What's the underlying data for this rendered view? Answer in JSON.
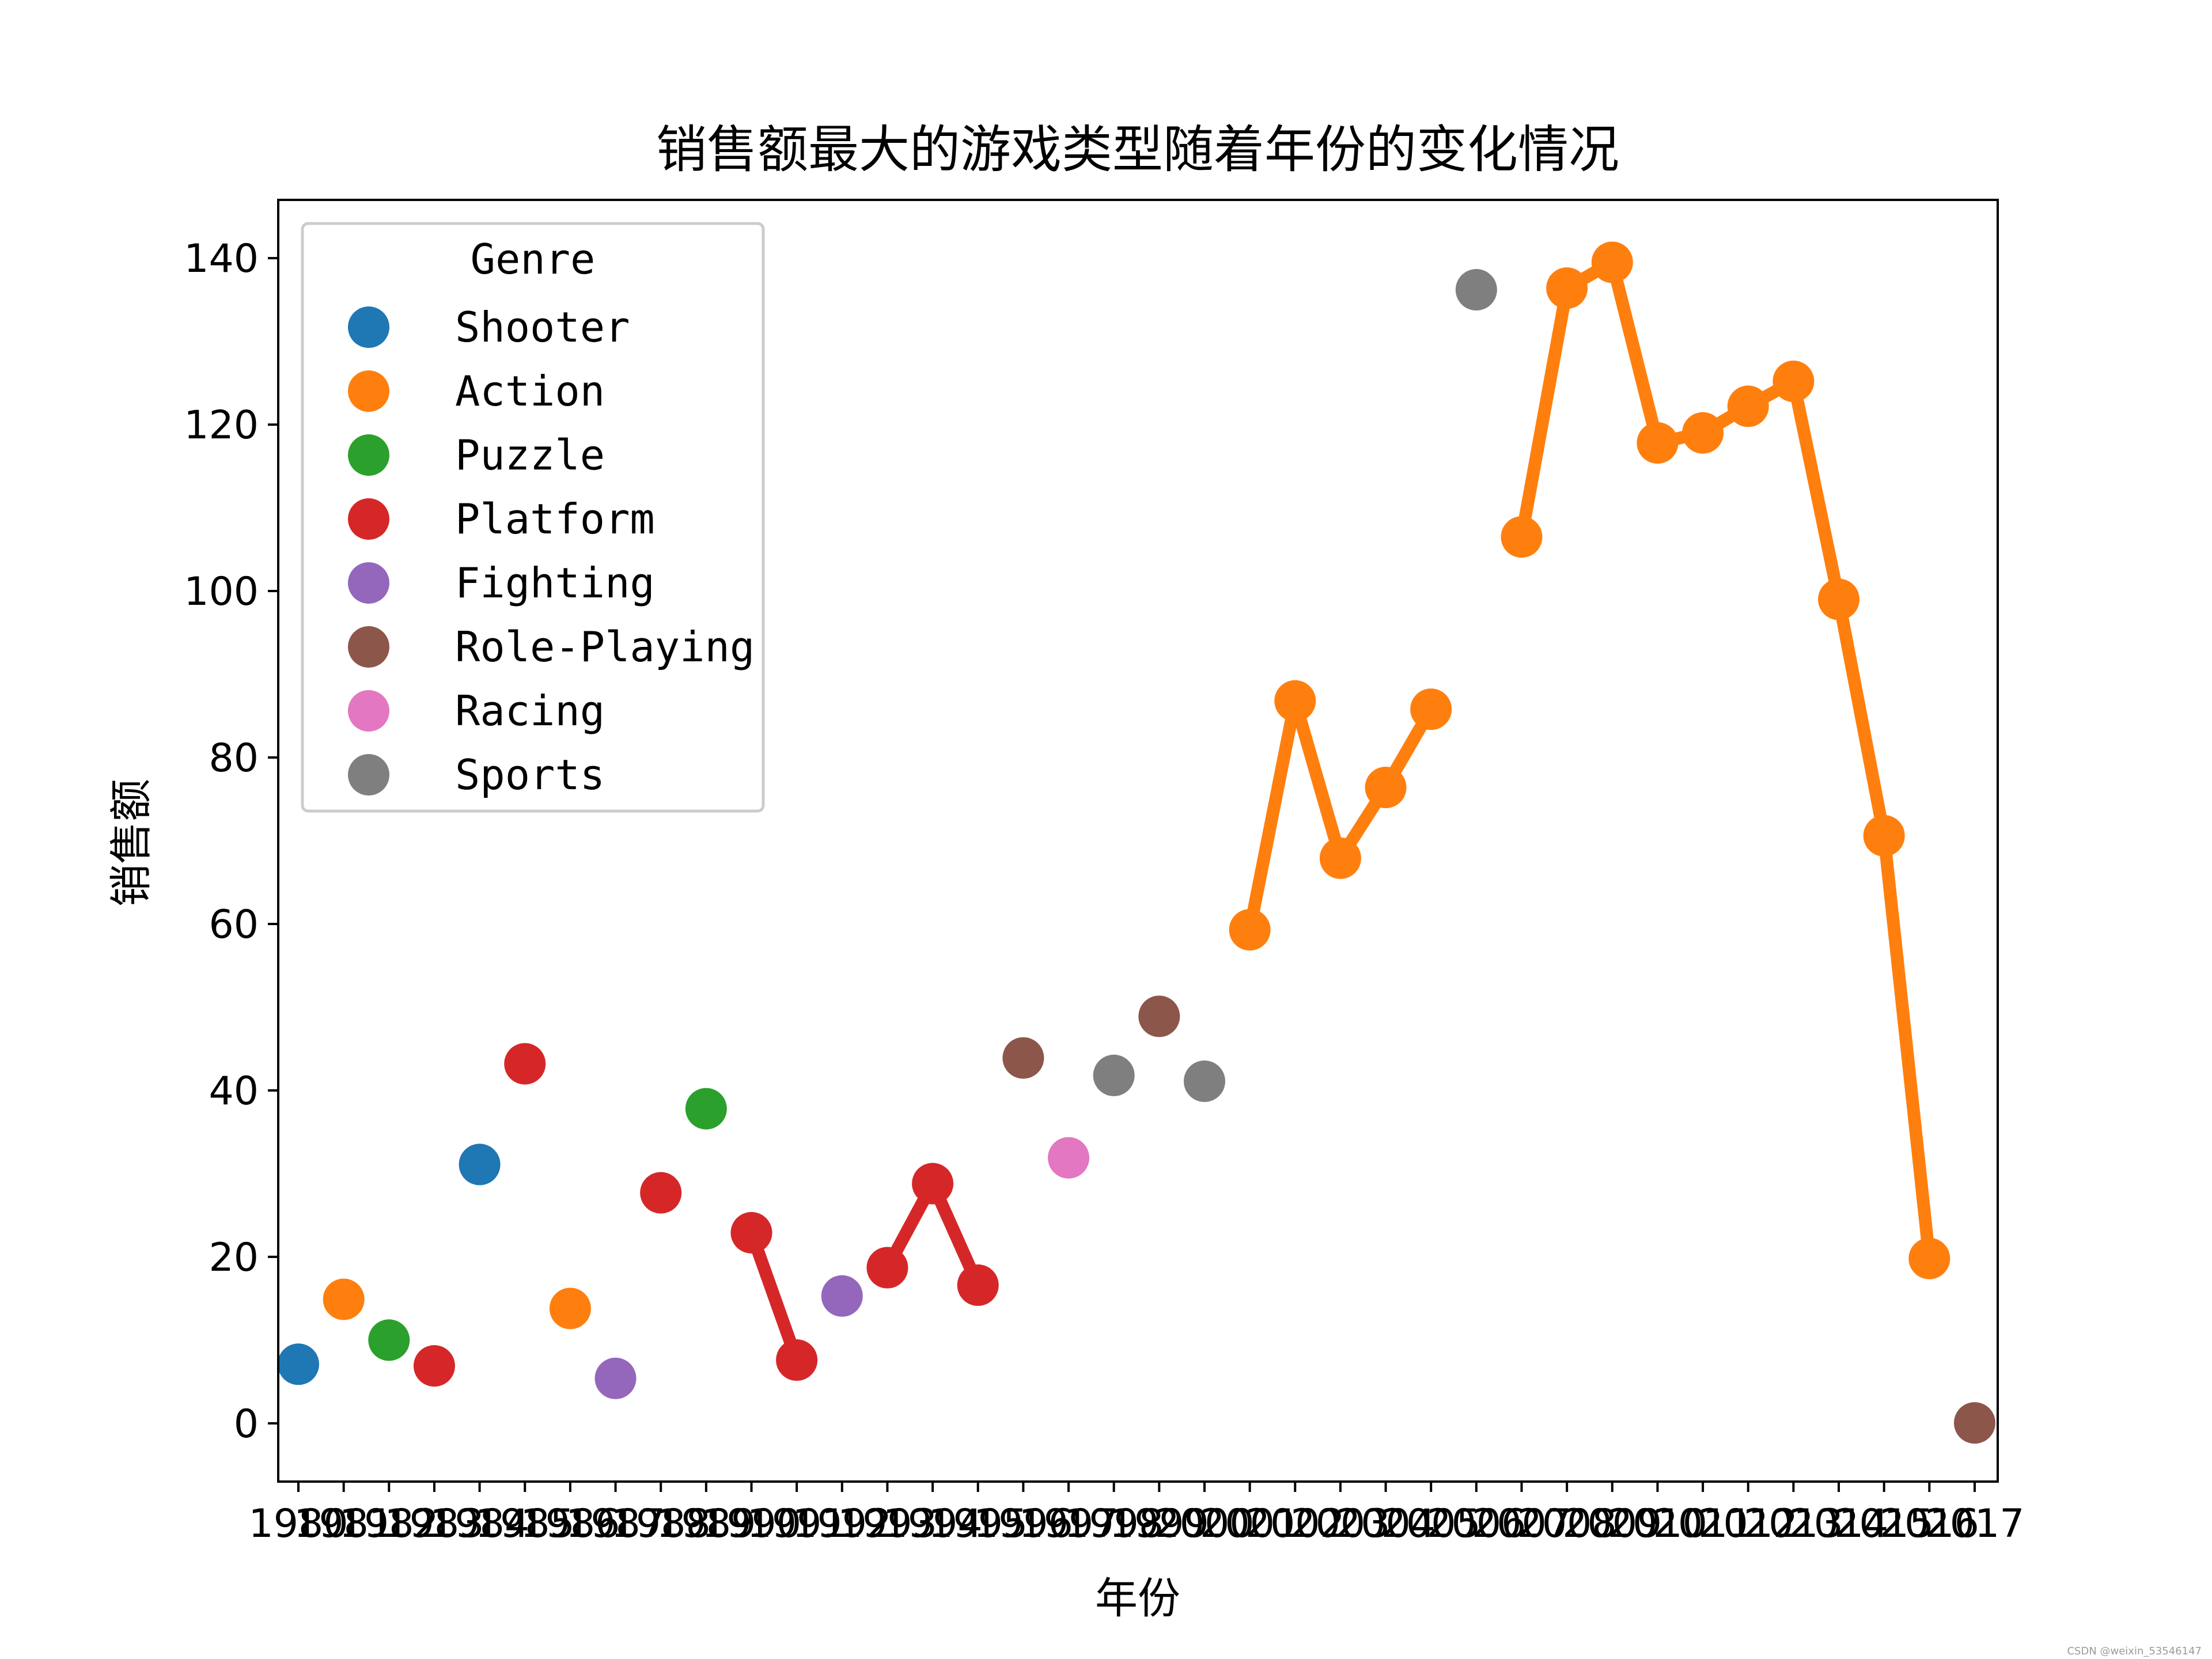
{
  "chart_data": {
    "type": "scatter",
    "title": "销售额最大的游戏类型随着年份的变化情况",
    "xlabel": "年份",
    "ylabel": "销售额",
    "ylim": [
      -7,
      147
    ],
    "yticks": [
      0,
      20,
      40,
      60,
      80,
      100,
      120,
      140
    ],
    "grid": false,
    "legend": {
      "title": "Genre",
      "placement": "top-left"
    },
    "genres": [
      {
        "name": "Shooter",
        "color": "#1f77b4"
      },
      {
        "name": "Action",
        "color": "#ff7f0e"
      },
      {
        "name": "Puzzle",
        "color": "#2ca02c"
      },
      {
        "name": "Platform",
        "color": "#d62728"
      },
      {
        "name": "Fighting",
        "color": "#9467bd"
      },
      {
        "name": "Role-Playing",
        "color": "#8c564b"
      },
      {
        "name": "Racing",
        "color": "#e377c2"
      },
      {
        "name": "Sports",
        "color": "#7f7f7f"
      }
    ],
    "x": [
      "1980",
      "1981",
      "1982",
      "1983",
      "1984",
      "1985",
      "1986",
      "1987",
      "1988",
      "1989",
      "1990",
      "1991",
      "1992",
      "1993",
      "1994",
      "1995",
      "1996",
      "1997",
      "1998",
      "1999",
      "2000",
      "2001",
      "2002",
      "2003",
      "2004",
      "2005",
      "2006",
      "2007",
      "2008",
      "2009",
      "2010",
      "2011",
      "2012",
      "2013",
      "2014",
      "2015",
      "2016",
      "2017"
    ],
    "genre_by_year": [
      "Shooter",
      "Action",
      "Puzzle",
      "Platform",
      "Shooter",
      "Platform",
      "Action",
      "Fighting",
      "Platform",
      "Puzzle",
      "Platform",
      "Platform",
      "Fighting",
      "Platform",
      "Platform",
      "Platform",
      "Role-Playing",
      "Racing",
      "Sports",
      "Role-Playing",
      "Sports",
      "Action",
      "Action",
      "Action",
      "Action",
      "Action",
      "Sports",
      "Action",
      "Action",
      "Action",
      "Action",
      "Action",
      "Action",
      "Action",
      "Action",
      "Action",
      "Action",
      "Role-Playing"
    ],
    "values": [
      7.1,
      14.9,
      10.0,
      6.9,
      31.1,
      43.2,
      13.8,
      5.4,
      27.7,
      37.8,
      22.9,
      7.6,
      15.3,
      18.7,
      28.8,
      16.6,
      43.9,
      31.9,
      41.8,
      48.9,
      41.1,
      59.3,
      86.8,
      67.9,
      76.4,
      85.8,
      136.2,
      106.5,
      136.4,
      139.5,
      117.8,
      119.0,
      122.2,
      125.2,
      99.0,
      70.6,
      19.8,
      0.05
    ],
    "lines": [
      {
        "series": "Platform",
        "from": "1990",
        "to": "1991"
      },
      {
        "series": "Platform",
        "from": "1993",
        "to": "1995"
      },
      {
        "series": "Action",
        "from": "2001",
        "to": "2005"
      },
      {
        "series": "Action",
        "from": "2007",
        "to": "2016"
      }
    ]
  },
  "watermark": "CSDN @weixin_53546147"
}
